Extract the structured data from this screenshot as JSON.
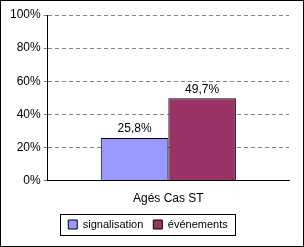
{
  "chart_data": {
    "type": "bar",
    "categories": [
      "Agés Cas ST"
    ],
    "series": [
      {
        "name": "signalisation",
        "color": "#9999ff",
        "values": [
          25.8
        ],
        "value_labels": [
          "25,8%"
        ]
      },
      {
        "name": "événements",
        "color": "#993366",
        "values": [
          49.7
        ],
        "value_labels": [
          "49,7%"
        ]
      }
    ],
    "ylim": [
      0,
      100
    ],
    "yticks": [
      {
        "value": 0,
        "label": "0%"
      },
      {
        "value": 20,
        "label": "20%"
      },
      {
        "value": 40,
        "label": "40%"
      },
      {
        "value": 60,
        "label": "60%"
      },
      {
        "value": 80,
        "label": "80%"
      },
      {
        "value": 100,
        "label": "100%"
      }
    ],
    "grid": true,
    "legend": "bottom",
    "data_labels": true
  }
}
